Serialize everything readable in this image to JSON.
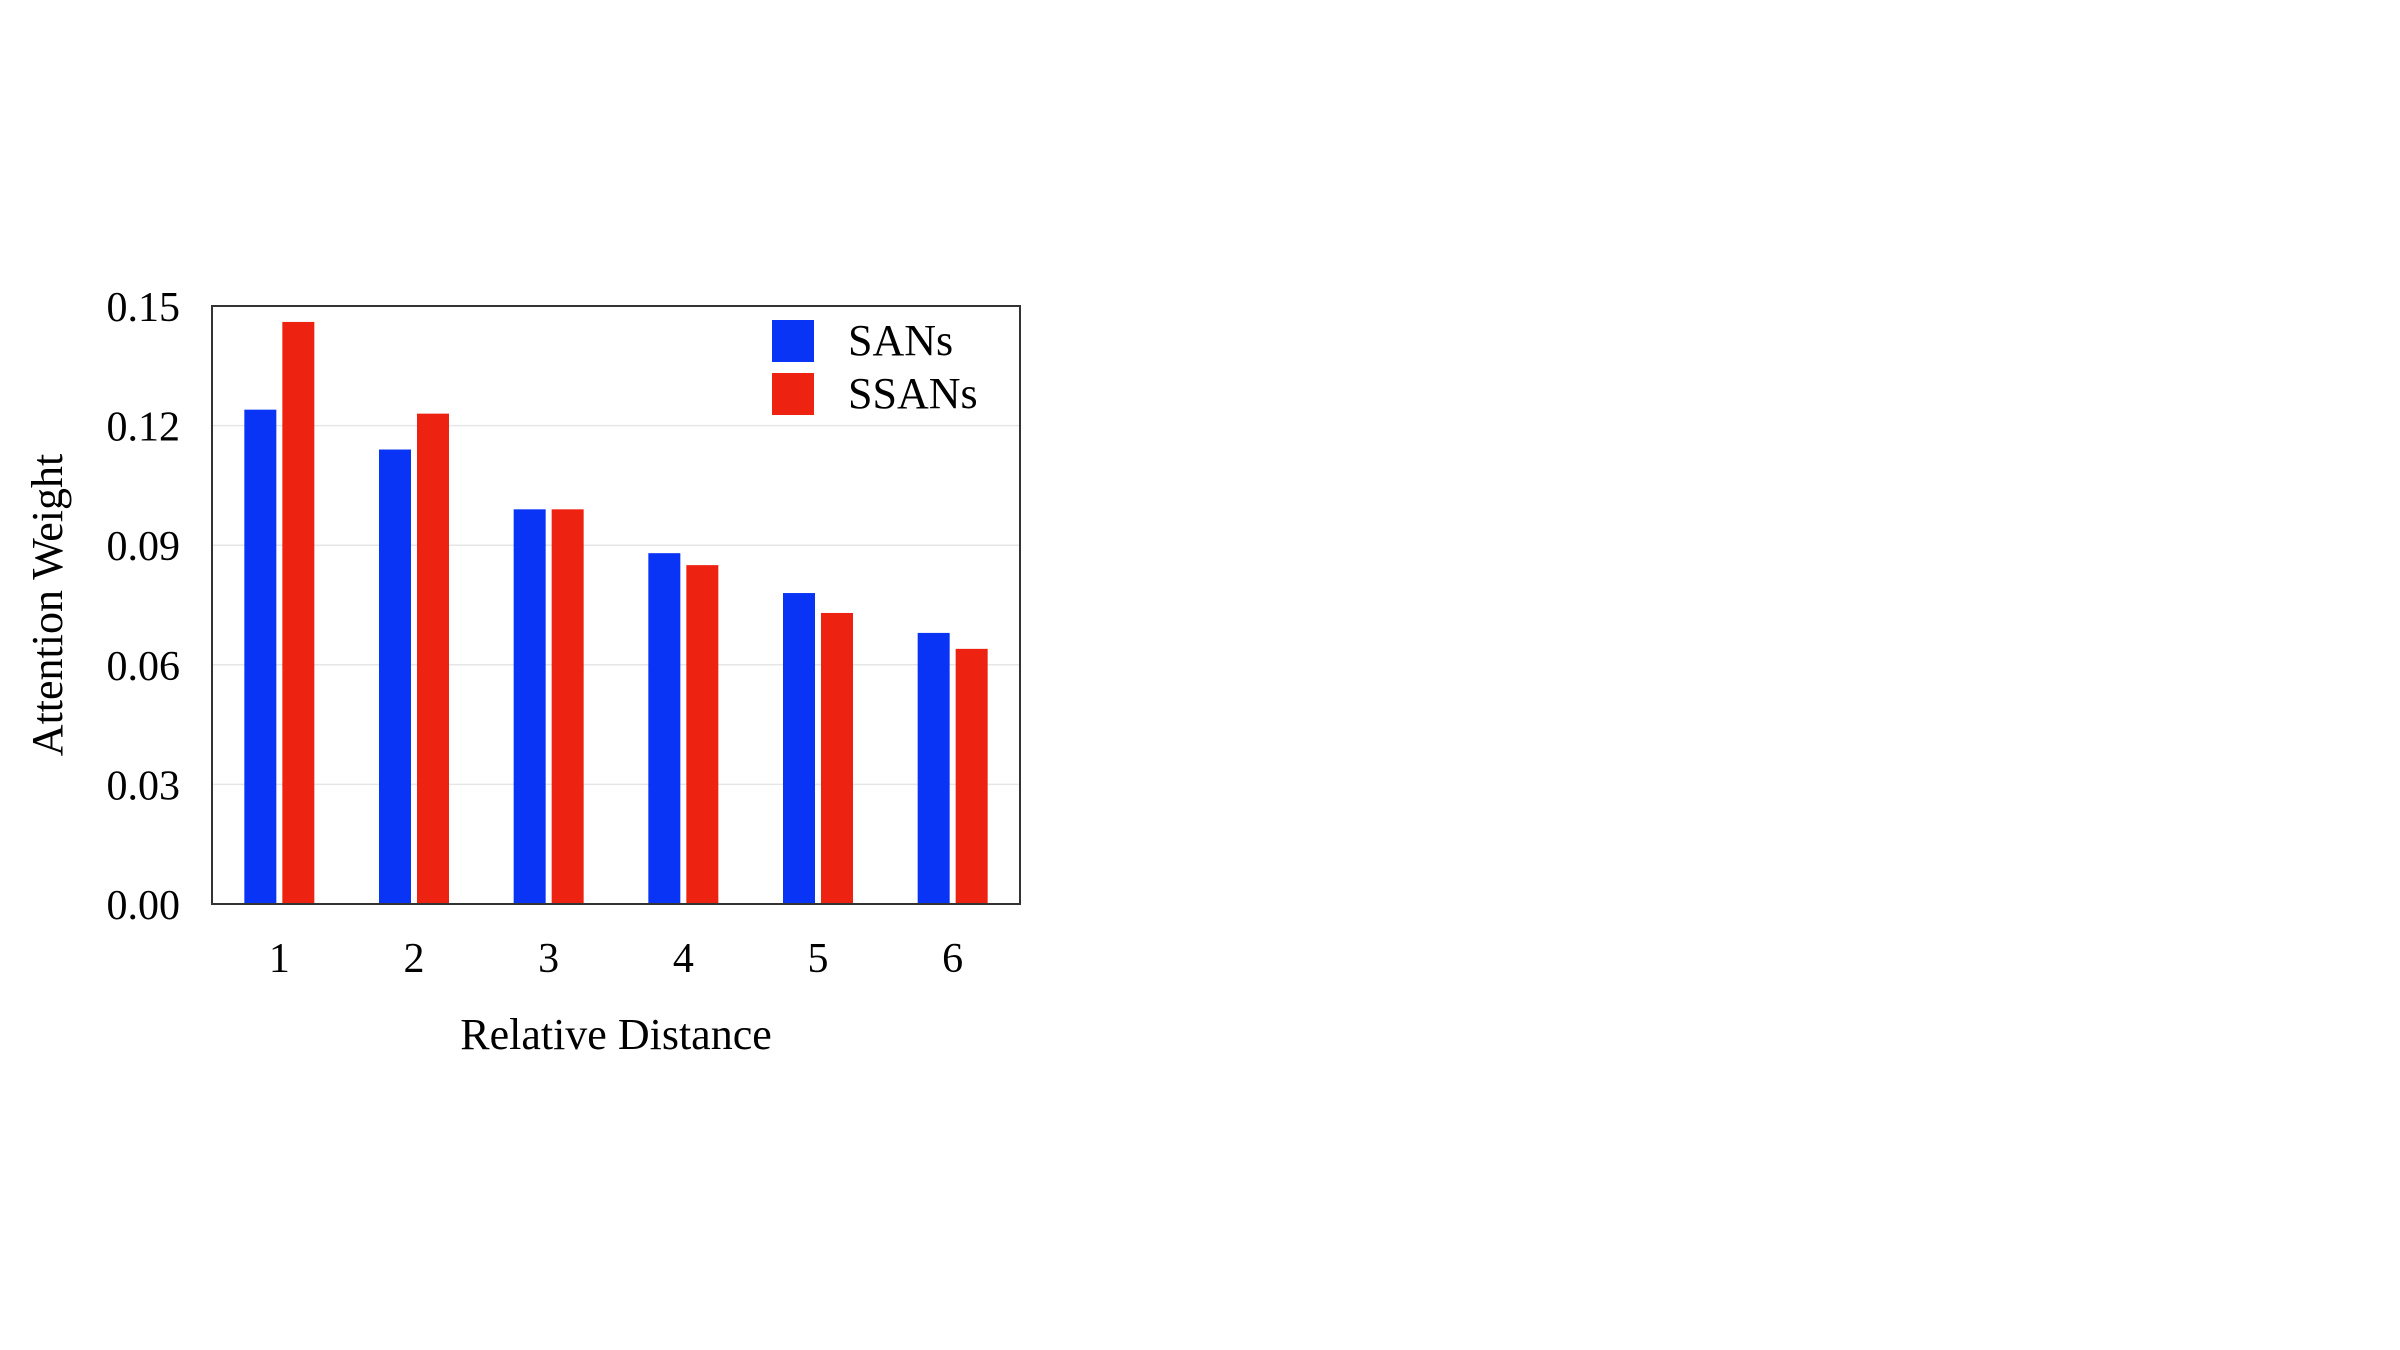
{
  "chart_data": {
    "type": "bar",
    "title": "",
    "xlabel": "Relative Distance",
    "ylabel": "Attention Weight",
    "categories": [
      "1",
      "2",
      "3",
      "4",
      "5",
      "6"
    ],
    "series": [
      {
        "name": "SANs",
        "color": "#0a34f5",
        "values": [
          0.124,
          0.114,
          0.099,
          0.088,
          0.078,
          0.068
        ]
      },
      {
        "name": "SSANs",
        "color": "#ee2211",
        "values": [
          0.146,
          0.123,
          0.099,
          0.085,
          0.073,
          0.064
        ]
      }
    ],
    "ylim": [
      0,
      0.15
    ],
    "yticks": [
      "0.00",
      "0.03",
      "0.06",
      "0.09",
      "0.12",
      "0.15"
    ],
    "grid": true,
    "legend": "top-right"
  }
}
